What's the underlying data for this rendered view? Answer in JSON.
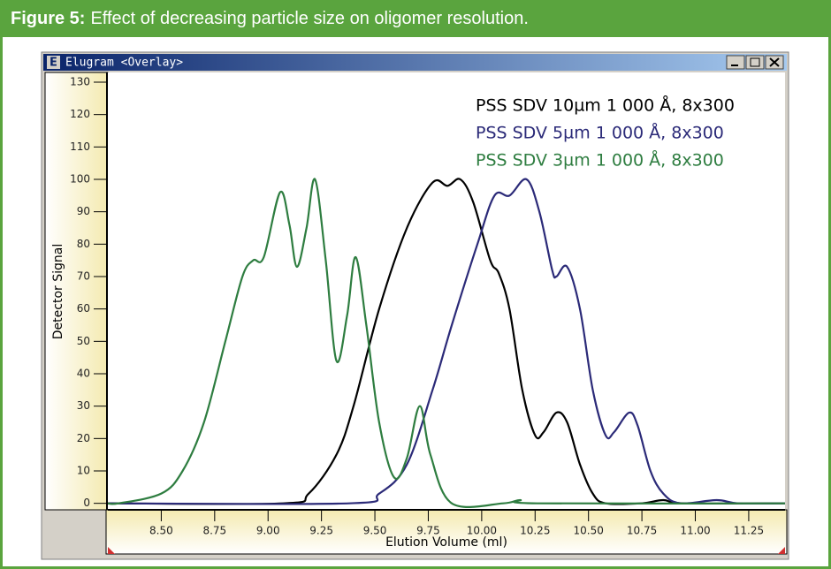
{
  "figure": {
    "label": "Figure 5:",
    "caption": "Effect of decreasing particle size on oligomer resolution."
  },
  "window": {
    "icon": "E",
    "title": "Elugram <Overlay>"
  },
  "chart_data": {
    "type": "line",
    "xlabel": "Elution Volume (ml)",
    "ylabel": "Detector Signal",
    "xlim": [
      8.25,
      11.42
    ],
    "ylim": [
      -2,
      133
    ],
    "xticks": [
      {
        "value": 8.5,
        "label": "8.50"
      },
      {
        "value": 8.75,
        "label": "8.75"
      },
      {
        "value": 9,
        "label": "9.00"
      },
      {
        "value": 9.25,
        "label": "9.25"
      },
      {
        "value": 9.5,
        "label": "9.50"
      },
      {
        "value": 9.75,
        "label": "9.75"
      },
      {
        "value": 10,
        "label": "10.00"
      },
      {
        "value": 10.25,
        "label": "10.25"
      },
      {
        "value": 10.5,
        "label": "10.50"
      },
      {
        "value": 10.75,
        "label": "10.75"
      },
      {
        "value": 11,
        "label": "11.00"
      },
      {
        "value": 11.25,
        "label": "11.25"
      }
    ],
    "yticks": [
      0,
      10,
      20,
      30,
      40,
      50,
      60,
      70,
      80,
      90,
      100,
      110,
      120,
      130
    ],
    "series": [
      {
        "name": "PSS SDV 10µm 1 000 Å, 8x300",
        "color": "#000000",
        "x": [
          8.25,
          9.07,
          9.19,
          9.32,
          9.4,
          9.52,
          9.65,
          9.77,
          9.84,
          9.9,
          9.96,
          10.04,
          10.08,
          10.13,
          10.19,
          10.25,
          10.29,
          10.35,
          10.4,
          10.46,
          10.52,
          10.58,
          10.75,
          10.85,
          10.95,
          11.42
        ],
        "values": [
          0,
          0,
          3,
          15,
          30,
          60,
          85,
          99,
          98,
          100,
          93,
          75,
          71,
          60,
          35,
          21,
          22,
          28,
          25,
          12,
          3,
          0,
          0,
          1,
          0,
          0
        ]
      },
      {
        "name": "PSS SDV 5µm 1 000 Å, 8x300",
        "color": "#2b2a78",
        "x": [
          8.25,
          9.38,
          9.52,
          9.65,
          9.77,
          9.86,
          9.98,
          10.06,
          10.13,
          10.21,
          10.27,
          10.33,
          10.35,
          10.4,
          10.46,
          10.52,
          10.58,
          10.62,
          10.69,
          10.73,
          10.79,
          10.85,
          10.93,
          11.1,
          11.2,
          11.42
        ],
        "values": [
          0,
          0,
          3,
          12,
          35,
          55,
          80,
          95,
          95,
          100,
          90,
          72,
          70,
          73,
          60,
          35,
          21,
          22,
          28,
          24,
          10,
          3,
          0,
          1,
          0,
          0
        ]
      },
      {
        "name": "PSS SDV 3µm 1 000 Å, 8x300",
        "color": "#2e7d40",
        "x": [
          8.25,
          8.3,
          8.5,
          8.6,
          8.7,
          8.8,
          8.88,
          8.93,
          8.98,
          9.056,
          9.1,
          9.135,
          9.18,
          9.22,
          9.27,
          9.32,
          9.37,
          9.41,
          9.46,
          9.52,
          9.59,
          9.65,
          9.71,
          9.76,
          9.86,
          10.1,
          10.18,
          10.26,
          11.42
        ],
        "values": [
          0,
          0,
          3,
          10,
          25,
          50,
          70,
          75,
          76,
          96,
          86,
          73,
          85,
          100,
          75,
          44,
          58,
          76,
          55,
          25,
          8,
          14,
          30,
          15,
          0,
          0,
          1,
          0,
          0
        ]
      }
    ]
  }
}
